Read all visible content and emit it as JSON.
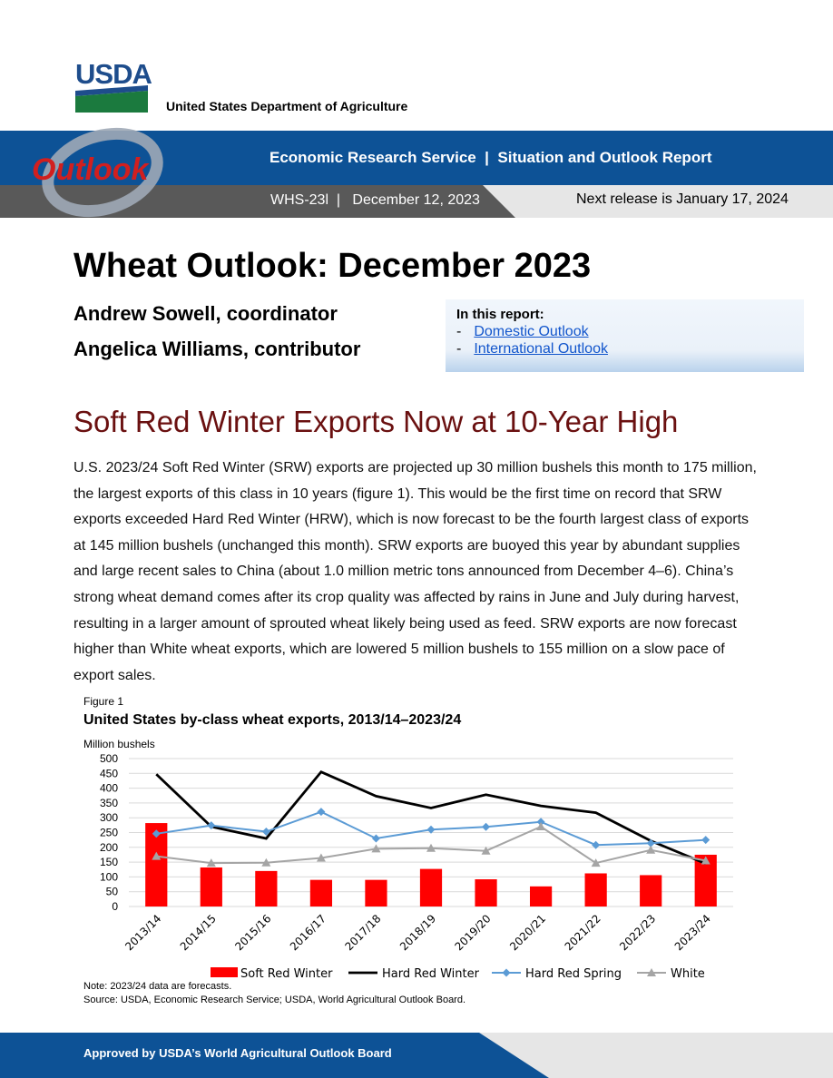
{
  "logo": {
    "text": "USDA",
    "dept_name": "United States Department of Agriculture"
  },
  "header": {
    "service_line": "Economic Research Service  |  Situation and Outlook Report",
    "report_id_line": "WHS-23l  |   December 12, 2023",
    "next_release": "Next release is January 17, 2024",
    "outlook_word": "Outlook"
  },
  "title": "Wheat Outlook: December 2023",
  "authors": [
    "Andrew Sowell, coordinator",
    "Angelica Williams, contributor"
  ],
  "report_box": {
    "heading": "In this report:",
    "items": [
      "Domestic Outlook",
      "International Outlook"
    ],
    "dash": "-"
  },
  "section_heading": "Soft Red Winter Exports Now at 10-Year High",
  "body": "U.S. 2023/24 Soft Red Winter (SRW) exports are projected up 30 million bushels this month to 175 million, the largest exports of this class in 10 years (figure 1). This would be the first time on record that SRW exports exceeded Hard Red Winter (HRW), which is now forecast to be the fourth largest class of exports at 145 million bushels (unchanged this month). SRW exports are buoyed this year by abundant supplies and large recent sales to China (about 1.0 million metric tons announced from December 4–6). China’s strong wheat demand comes after its crop quality was affected by rains in June and July during harvest, resulting in a larger amount of sprouted wheat likely being used as feed. SRW exports are now forecast higher than White wheat exports, which are lowered 5 million bushels to 155 million on a slow pace of export sales.",
  "figure": {
    "label": "Figure 1",
    "title": "United States by-class wheat exports, 2013/14–2023/24",
    "note": "Note: 2023/24 data are forecasts.",
    "source": "Source: USDA, Economic Research Service; USDA, World Agricultural Outlook Board."
  },
  "chart_data": {
    "type": "bar",
    "ylabel": "Million bushels",
    "ylim": [
      0,
      500
    ],
    "yticks": [
      0,
      50,
      100,
      150,
      200,
      250,
      300,
      350,
      400,
      450,
      500
    ],
    "categories": [
      "2013/14",
      "2014/15",
      "2015/16",
      "2016/17",
      "2017/18",
      "2018/19",
      "2019/20",
      "2020/21",
      "2021/22",
      "2022/23",
      "2023/24"
    ],
    "series": [
      {
        "name": "Soft Red Winter",
        "kind": "bar",
        "color": "#ff0000",
        "values": [
          282,
          132,
          120,
          90,
          90,
          127,
          92,
          68,
          112,
          106,
          175
        ]
      },
      {
        "name": "Hard Red Winter",
        "kind": "line",
        "color": "#000000",
        "marker": "none",
        "values": [
          447,
          270,
          230,
          455,
          373,
          333,
          378,
          340,
          317,
          222,
          145
        ]
      },
      {
        "name": "Hard Red Spring",
        "kind": "line",
        "color": "#5b9bd5",
        "marker": "diamond",
        "values": [
          246,
          274,
          253,
          320,
          230,
          260,
          269,
          286,
          208,
          214,
          225
        ]
      },
      {
        "name": "White",
        "kind": "line",
        "color": "#a5a5a5",
        "marker": "triangle",
        "values": [
          170,
          147,
          148,
          164,
          195,
          197,
          188,
          270,
          147,
          191,
          155
        ]
      }
    ],
    "legend_position": "bottom",
    "grid": true
  },
  "footer": {
    "text": "Approved by USDA’s World Agricultural Outlook Board"
  },
  "colors": {
    "band_blue": "#0d5296",
    "band_dark": "#595959",
    "heading_red": "#6a1010",
    "usda_blue": "#1e4d8c",
    "usda_green": "#1b7a3e"
  }
}
